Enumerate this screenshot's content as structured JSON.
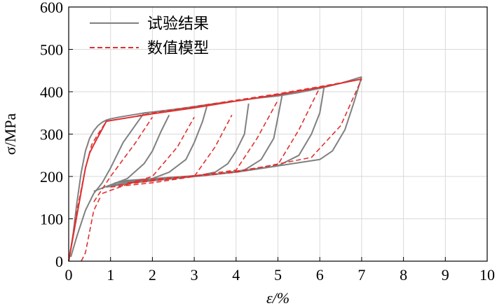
{
  "chart_data": {
    "type": "line",
    "xlabel": "ε/%",
    "ylabel": "σ/MPa",
    "xlim": [
      0,
      10
    ],
    "ylim": [
      0,
      600
    ],
    "xticks": [
      "0",
      "1",
      "2",
      "3",
      "4",
      "5",
      "6",
      "7",
      "8",
      "9",
      "10"
    ],
    "yticks": [
      "0",
      "100",
      "200",
      "300",
      "400",
      "500",
      "600"
    ],
    "grid": true,
    "legend_position": "top-left",
    "series": [
      {
        "name": "试验结果",
        "color": "#808080",
        "style": "solid",
        "segments": [
          [
            [
              0,
              0
            ],
            [
              0.1,
              60
            ],
            [
              0.2,
              140
            ],
            [
              0.3,
              210
            ],
            [
              0.4,
              260
            ],
            [
              0.5,
              290
            ],
            [
              0.6,
              308
            ],
            [
              0.7,
              320
            ],
            [
              0.8,
              328
            ],
            [
              0.9,
              333
            ],
            [
              1.0,
              336
            ],
            [
              1.2,
              340
            ],
            [
              1.5,
              345
            ],
            [
              1.8,
              350
            ],
            [
              2.0,
              352
            ],
            [
              2.5,
              358
            ],
            [
              3.0,
              365
            ],
            [
              3.5,
              372
            ],
            [
              4.0,
              378
            ],
            [
              4.5,
              385
            ],
            [
              5.0,
              390
            ],
            [
              5.5,
              398
            ],
            [
              6.0,
              408
            ],
            [
              6.5,
              420
            ],
            [
              7.0,
              435
            ]
          ],
          [
            [
              1.8,
              350
            ],
            [
              1.3,
              280
            ],
            [
              1.0,
              220
            ],
            [
              0.8,
              185
            ],
            [
              0.6,
              160
            ],
            [
              0.4,
              120
            ],
            [
              0.2,
              60
            ],
            [
              0.05,
              10
            ]
          ],
          [
            [
              0.6,
              165
            ],
            [
              1.0,
              180
            ],
            [
              1.4,
              195
            ],
            [
              1.8,
              230
            ],
            [
              2.0,
              260
            ],
            [
              2.2,
              305
            ],
            [
              2.4,
              345
            ]
          ],
          [
            [
              0.9,
              175
            ],
            [
              1.5,
              185
            ],
            [
              2.0,
              195
            ],
            [
              2.4,
              210
            ],
            [
              2.8,
              240
            ],
            [
              3.0,
              280
            ],
            [
              3.2,
              330
            ],
            [
              3.3,
              365
            ]
          ],
          [
            [
              1.0,
              180
            ],
            [
              2.0,
              190
            ],
            [
              3.0,
              200
            ],
            [
              3.5,
              210
            ],
            [
              3.8,
              230
            ],
            [
              4.0,
              260
            ],
            [
              4.2,
              300
            ],
            [
              4.3,
              372
            ]
          ],
          [
            [
              1.1,
              185
            ],
            [
              2.5,
              195
            ],
            [
              3.5,
              205
            ],
            [
              4.2,
              215
            ],
            [
              4.6,
              240
            ],
            [
              4.9,
              290
            ],
            [
              5.0,
              340
            ],
            [
              5.1,
              392
            ]
          ],
          [
            [
              1.2,
              188
            ],
            [
              3.0,
              200
            ],
            [
              4.0,
              210
            ],
            [
              5.0,
              225
            ],
            [
              5.5,
              250
            ],
            [
              5.8,
              300
            ],
            [
              6.0,
              350
            ],
            [
              6.1,
              410
            ]
          ],
          [
            [
              1.3,
              190
            ],
            [
              3.5,
              205
            ],
            [
              5.0,
              225
            ],
            [
              6.0,
              240
            ],
            [
              6.3,
              260
            ],
            [
              6.6,
              310
            ],
            [
              6.8,
              370
            ],
            [
              7.0,
              435
            ]
          ]
        ]
      },
      {
        "name": "数值模型",
        "color": "#e03030",
        "style": "dashed",
        "segments": [
          [
            [
              0,
              0
            ],
            [
              0.2,
              120
            ],
            [
              0.4,
              220
            ],
            [
              0.55,
              275
            ],
            [
              0.7,
              300
            ],
            [
              0.9,
              330
            ],
            [
              1.0,
              332
            ],
            [
              1.5,
              340
            ],
            [
              2.0,
              350
            ],
            [
              3.0,
              365
            ],
            [
              4.0,
              380
            ],
            [
              5.0,
              395
            ],
            [
              6.0,
              412
            ],
            [
              7.0,
              430
            ]
          ],
          [
            [
              0.3,
              0
            ],
            [
              0.4,
              20
            ],
            [
              0.6,
              120
            ],
            [
              0.75,
              150
            ]
          ],
          [
            [
              0.6,
              140
            ],
            [
              1.0,
              200
            ],
            [
              1.6,
              280
            ],
            [
              2.0,
              340
            ]
          ],
          [
            [
              0.8,
              160
            ],
            [
              1.5,
              185
            ],
            [
              2.0,
              200
            ],
            [
              2.6,
              270
            ],
            [
              3.0,
              340
            ]
          ],
          [
            [
              1.0,
              175
            ],
            [
              2.0,
              185
            ],
            [
              3.0,
              200
            ],
            [
              3.5,
              270
            ],
            [
              3.9,
              345
            ]
          ],
          [
            [
              1.2,
              180
            ],
            [
              2.5,
              195
            ],
            [
              4.0,
              215
            ],
            [
              4.5,
              290
            ],
            [
              5.0,
              380
            ]
          ],
          [
            [
              1.4,
              185
            ],
            [
              3.5,
              205
            ],
            [
              5.0,
              228
            ],
            [
              5.5,
              310
            ],
            [
              6.0,
              410
            ]
          ],
          [
            [
              1.6,
              190
            ],
            [
              4.0,
              210
            ],
            [
              5.8,
              245
            ],
            [
              6.5,
              320
            ],
            [
              7.0,
              430
            ]
          ]
        ]
      },
      {
        "name": "",
        "color": "#e03030",
        "style": "solid",
        "segments": [
          [
            [
              0,
              0
            ],
            [
              0.2,
              110
            ],
            [
              0.4,
              220
            ],
            [
              0.5,
              255
            ],
            [
              0.6,
              275
            ],
            [
              0.9,
              330
            ],
            [
              1.0,
              332
            ],
            [
              1.5,
              340
            ],
            [
              2.0,
              348
            ],
            [
              3.0,
              362
            ],
            [
              4.0,
              378
            ],
            [
              5.0,
              393
            ],
            [
              6.0,
              410
            ],
            [
              7.0,
              430
            ]
          ]
        ]
      }
    ]
  }
}
